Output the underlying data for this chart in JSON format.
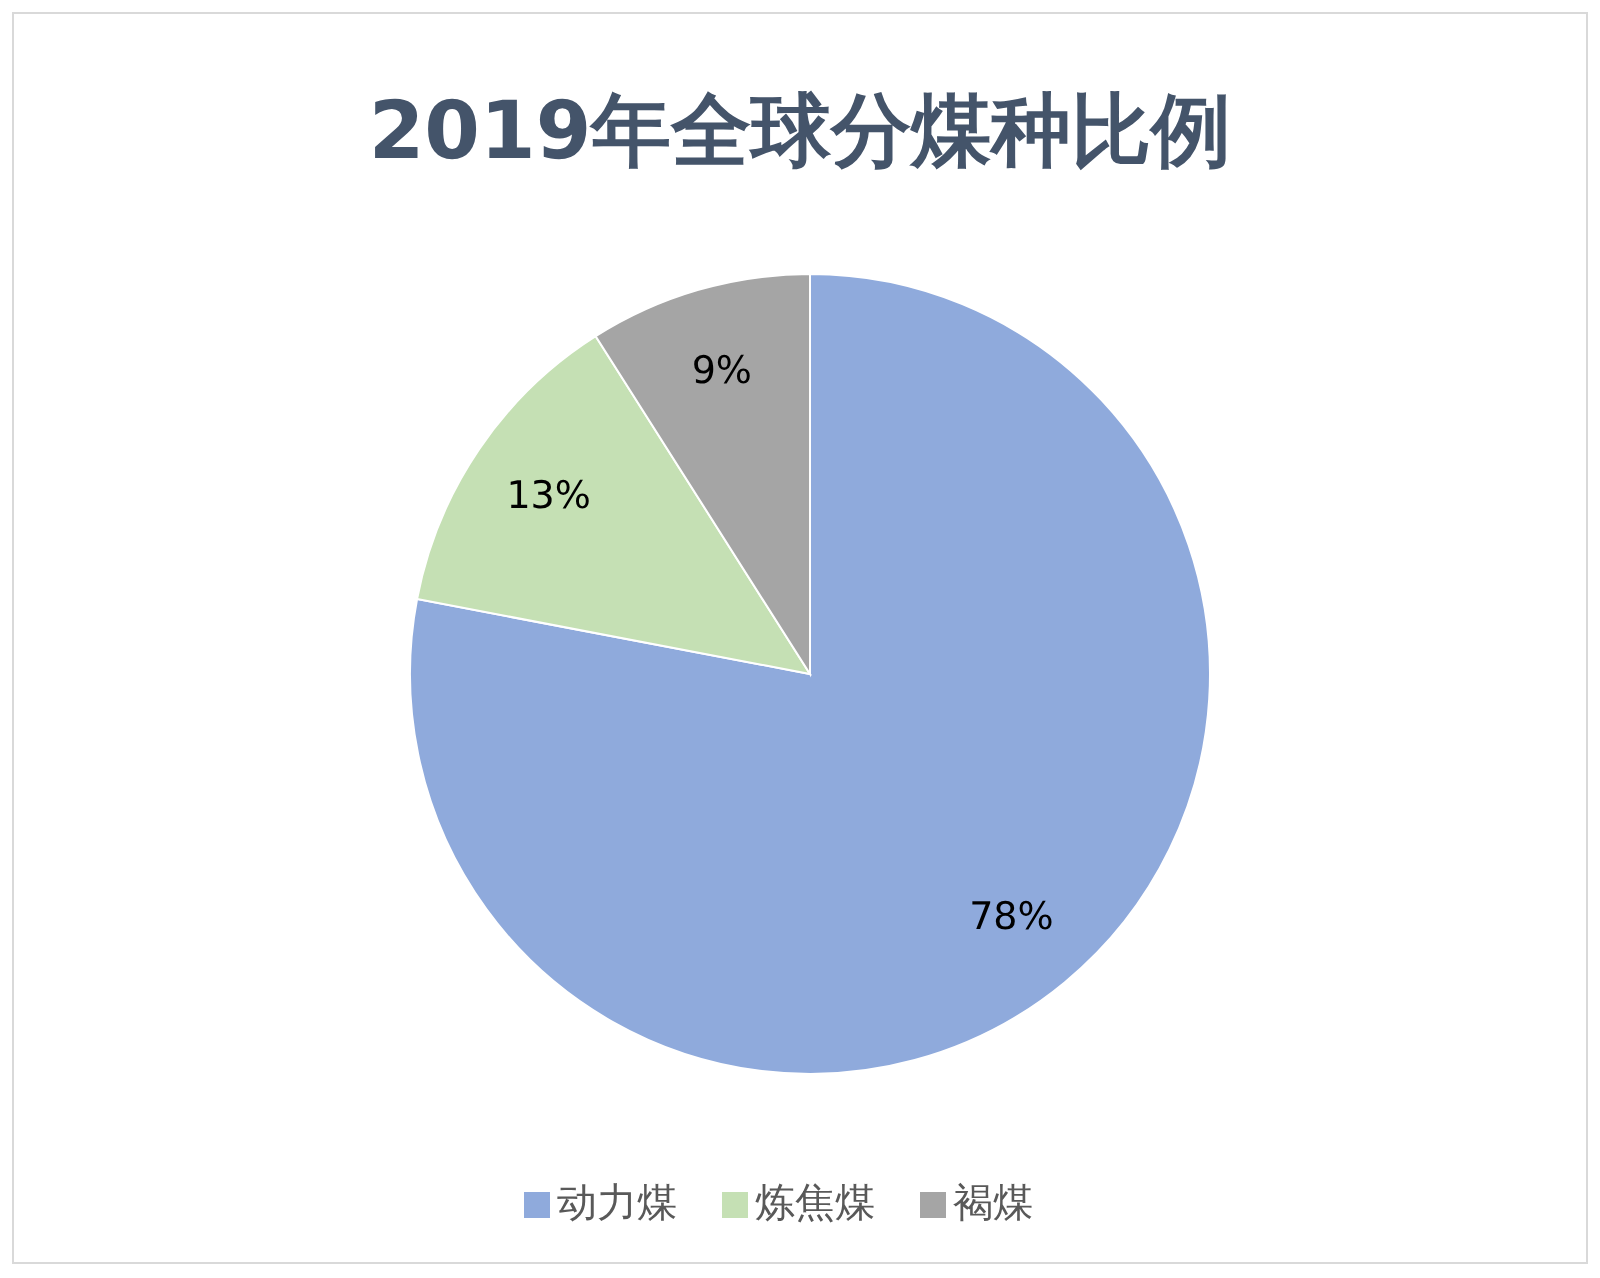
{
  "chart_data": {
    "type": "pie",
    "title": "2019年全球分煤种比例",
    "categories": [
      "动力煤",
      "炼焦煤",
      "褐煤"
    ],
    "values": [
      78,
      13,
      9
    ],
    "colors": [
      "#8faadc",
      "#c5e0b4",
      "#a5a5a5"
    ],
    "value_labels": [
      "78%",
      "13%",
      "9%"
    ],
    "legend": "bottom"
  }
}
